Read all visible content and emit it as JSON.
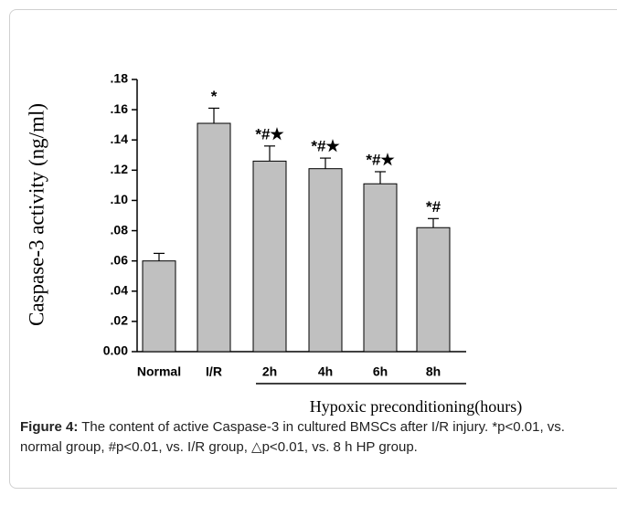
{
  "chart_data": {
    "type": "bar",
    "ylabel": "Caspase-3 activity (ng/ml)",
    "categories": [
      "Normal",
      "I/R",
      "2h",
      "4h",
      "6h",
      "8h"
    ],
    "values": [
      0.06,
      0.151,
      0.126,
      0.121,
      0.111,
      0.082
    ],
    "errors": [
      0.005,
      0.01,
      0.01,
      0.007,
      0.008,
      0.006
    ],
    "annotations": [
      null,
      "*",
      "*#★",
      "*#★",
      "*#★",
      "*#"
    ],
    "color": "#c0c0c0",
    "ylim": [
      0,
      0.18
    ],
    "yticks": [
      {
        "value": 0,
        "label": "0.00"
      },
      {
        "value": 0.02,
        "label": ".02"
      },
      {
        "value": 0.04,
        "label": ".04"
      },
      {
        "value": 0.06,
        "label": ".06"
      },
      {
        "value": 0.08,
        "label": ".08"
      },
      {
        "value": 0.1,
        "label": ".10"
      },
      {
        "value": 0.12,
        "label": ".12"
      },
      {
        "value": 0.14,
        "label": ".14"
      },
      {
        "value": 0.16,
        "label": ".16"
      },
      {
        "value": 0.18,
        "label": ".18"
      }
    ],
    "group_label": "Hypoxic preconditioning(hours)",
    "grid": false
  },
  "caption": {
    "label": "Figure 4:",
    "text": "The content of active Caspase-3 in cultured BMSCs after I/R injury. *p<0.01, vs. normal group, #p<0.01, vs. I/R group, △p<0.01, vs. 8 h HP group."
  }
}
